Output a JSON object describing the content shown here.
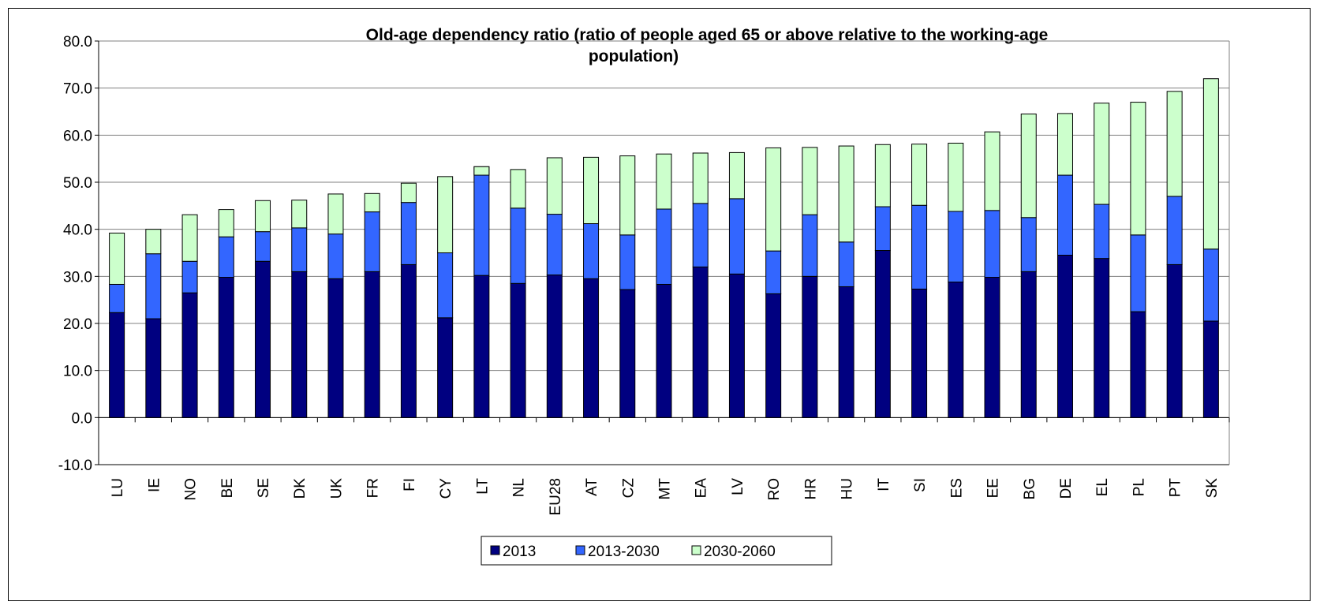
{
  "chart_data": {
    "type": "bar",
    "stacked": true,
    "title": "Old-age dependency ratio (ratio of people aged 65 or above relative to the working-age population)",
    "title_lines": [
      "Old-age dependency ratio (ratio of people aged 65 or above relative to the working-age",
      "population)"
    ],
    "ylim": [
      -10,
      80
    ],
    "yticks": [
      "80.0",
      "70.0",
      "60.0",
      "50.0",
      "40.0",
      "30.0",
      "20.0",
      "10.0",
      "0.0",
      "-10.0"
    ],
    "yticks_values": [
      80,
      70,
      60,
      50,
      40,
      30,
      20,
      10,
      0,
      -10
    ],
    "grid": true,
    "legend_position": "bottom",
    "categories": [
      "LU",
      "IE",
      "NO",
      "BE",
      "SE",
      "DK",
      "UK",
      "FR",
      "FI",
      "CY",
      "LT",
      "NL",
      "EU28",
      "AT",
      "CZ",
      "MT",
      "EA",
      "LV",
      "RO",
      "HR",
      "HU",
      "IT",
      "SI",
      "ES",
      "EE",
      "BG",
      "DE",
      "EL",
      "PL",
      "PT",
      "SK"
    ],
    "series": [
      {
        "name": "2013",
        "color": "#000080",
        "values": [
          22.3,
          21.0,
          26.5,
          29.8,
          33.2,
          31.0,
          29.5,
          31.0,
          32.5,
          21.2,
          30.2,
          28.5,
          30.3,
          29.5,
          27.2,
          28.3,
          32.0,
          30.5,
          26.3,
          30.0,
          27.8,
          35.5,
          27.3,
          28.8,
          29.8,
          31.0,
          34.5,
          33.8,
          22.5,
          32.5,
          20.5
        ]
      },
      {
        "name": "2013-2030",
        "color": "#3366ff",
        "values": [
          6.0,
          13.8,
          6.7,
          8.6,
          6.3,
          9.3,
          9.5,
          12.7,
          13.2,
          13.8,
          23.1,
          16.0,
          12.9,
          11.7,
          11.6,
          16.0,
          13.5,
          16.0,
          9.1,
          13.1,
          9.5,
          9.3,
          17.8,
          15.0,
          14.2,
          11.5,
          17.0,
          11.5,
          16.3,
          14.5,
          15.3
        ]
      },
      {
        "name": "2030-2060",
        "color": "#ccffcc",
        "values": [
          10.9,
          5.2,
          9.9,
          5.8,
          6.6,
          5.9,
          8.5,
          3.9,
          4.1,
          16.2,
          -1.8,
          8.2,
          12.0,
          14.1,
          16.8,
          11.7,
          10.7,
          9.8,
          21.9,
          14.3,
          20.4,
          13.2,
          13.0,
          14.5,
          16.7,
          22.0,
          13.1,
          21.5,
          28.2,
          22.3,
          36.2
        ]
      }
    ]
  }
}
